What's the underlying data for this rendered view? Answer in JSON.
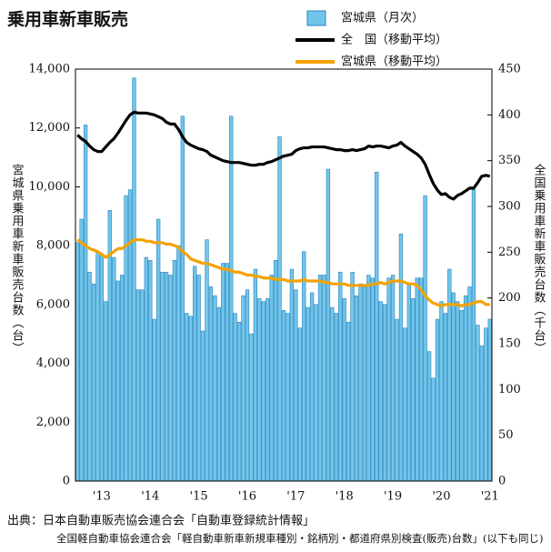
{
  "chart_data": {
    "type": "bar",
    "title": "乗用車新車販売",
    "ylabel": "宮城県乗用車新車販売台数（台）",
    "y2label": "全国乗用車新車販売台数（千台）",
    "source": "出典：日本自動車販売協会連合会「自動車登録統計情報」",
    "source_detail": "全国軽自動車協会連合会「軽自動車新車新規車種別・銘柄別・都道府県別検査(販売)台数」(以下も同じ)",
    "categories": [
      null,
      null,
      null,
      null,
      null,
      null,
      "'13",
      null,
      null,
      null,
      null,
      null,
      null,
      null,
      null,
      null,
      null,
      null,
      "'14",
      null,
      null,
      null,
      null,
      null,
      null,
      null,
      null,
      null,
      null,
      null,
      "'15",
      null,
      null,
      null,
      null,
      null,
      null,
      null,
      null,
      null,
      null,
      null,
      "'16",
      null,
      null,
      null,
      null,
      null,
      null,
      null,
      null,
      null,
      null,
      null,
      "'17",
      null,
      null,
      null,
      null,
      null,
      null,
      null,
      null,
      null,
      null,
      null,
      "'18",
      null,
      null,
      null,
      null,
      null,
      null,
      null,
      null,
      null,
      null,
      null,
      "'19",
      null,
      null,
      null,
      null,
      null,
      null,
      null,
      null,
      null,
      null,
      null,
      "'20",
      null,
      null,
      null,
      null,
      null,
      null,
      null,
      null,
      null,
      null,
      null,
      "'21"
    ],
    "ylim": [
      0,
      14000
    ],
    "yticks": [
      0,
      {
        "value": 2000,
        "label": "2,000"
      },
      {
        "value": 4000,
        "label": "4,000"
      },
      {
        "value": 6000,
        "label": "6,000"
      },
      {
        "value": 8000,
        "label": "8,000"
      },
      {
        "value": 10000,
        "label": "10,000"
      },
      {
        "value": 12000,
        "label": "12,000"
      },
      {
        "value": 14000,
        "label": "14,000"
      }
    ],
    "y2lim": [
      0,
      450
    ],
    "y2ticks": [
      0,
      50,
      100,
      150,
      200,
      250,
      300,
      350,
      400,
      450
    ],
    "series": [
      {
        "name": "宮城県（月次）",
        "type": "bar",
        "color": "#72c5ea",
        "values": [
          8100,
          8900,
          12100,
          7100,
          6700,
          7800,
          7700,
          6100,
          9200,
          7600,
          6800,
          7000,
          9700,
          9900,
          13700,
          6500,
          6500,
          7600,
          7500,
          5500,
          8900,
          7100,
          7100,
          7000,
          7500,
          8000,
          12400,
          5700,
          5600,
          7300,
          7000,
          5100,
          8200,
          6600,
          6300,
          5900,
          7400,
          7400,
          12400,
          5700,
          5400,
          6300,
          6500,
          5000,
          7200,
          6200,
          6100,
          6200,
          7000,
          7500,
          11700,
          5800,
          5700,
          7200,
          6500,
          5200,
          7800,
          5900,
          6400,
          6000,
          7000,
          7000,
          10600,
          5900,
          5700,
          7100,
          6200,
          5400,
          7100,
          6300,
          6700,
          6600,
          7000,
          6900,
          10500,
          6100,
          6000,
          6900,
          7000,
          5500,
          8400,
          5200,
          6700,
          6200,
          6900,
          6900,
          9700,
          4400,
          3500,
          5500,
          6100,
          5700,
          7200,
          6400,
          6100,
          5800,
          6300,
          6600,
          9900,
          5300,
          4600,
          5200,
          5500
        ]
      },
      {
        "name": "全　国（移動平均）",
        "type": "line",
        "axis": "y2",
        "color": "#000000",
        "values": [
          378,
          374,
          371,
          366,
          362,
          360,
          360,
          365,
          370,
          374,
          380,
          387,
          394,
          400,
          403,
          402,
          402,
          402,
          401,
          400,
          398,
          396,
          392,
          390,
          390,
          384,
          376,
          370,
          367,
          365,
          363,
          362,
          360,
          356,
          354,
          352,
          350,
          349,
          348,
          348,
          348,
          347,
          346,
          345,
          345,
          346,
          346,
          348,
          349,
          351,
          353,
          355,
          356,
          357,
          361,
          363,
          364,
          364,
          365,
          365,
          365,
          365,
          364,
          363,
          362,
          362,
          361,
          361,
          362,
          361,
          362,
          363,
          366,
          365,
          366,
          366,
          365,
          364,
          366,
          367,
          370,
          366,
          363,
          360,
          357,
          353,
          346,
          335,
          325,
          318,
          313,
          314,
          310,
          308,
          312,
          314,
          317,
          320,
          320,
          326,
          333,
          334,
          333
        ]
      },
      {
        "name": "宮城県（移動平均）",
        "type": "line",
        "color": "#f5a200",
        "values": [
          8200,
          8100,
          8000,
          7900,
          7850,
          7800,
          7700,
          7600,
          7700,
          7800,
          7900,
          7900,
          8000,
          8100,
          8200,
          8200,
          8200,
          8150,
          8150,
          8100,
          8100,
          8100,
          8050,
          8050,
          8000,
          7950,
          7800,
          7700,
          7550,
          7500,
          7450,
          7400,
          7400,
          7350,
          7300,
          7250,
          7200,
          7200,
          7150,
          7100,
          7100,
          7050,
          7000,
          7000,
          6950,
          6950,
          6900,
          6900,
          6900,
          6850,
          6850,
          6850,
          6800,
          6800,
          6800,
          6800,
          6850,
          6800,
          6800,
          6800,
          6800,
          6750,
          6750,
          6700,
          6700,
          6700,
          6700,
          6650,
          6650,
          6650,
          6650,
          6650,
          6650,
          6700,
          6700,
          6750,
          6700,
          6750,
          6800,
          6800,
          6800,
          6750,
          6700,
          6700,
          6650,
          6500,
          6300,
          6150,
          6050,
          6000,
          5950,
          6000,
          6000,
          6000,
          6000,
          5950,
          6000,
          6000,
          6050,
          6100,
          6100,
          6000,
          6000
        ]
      }
    ]
  }
}
